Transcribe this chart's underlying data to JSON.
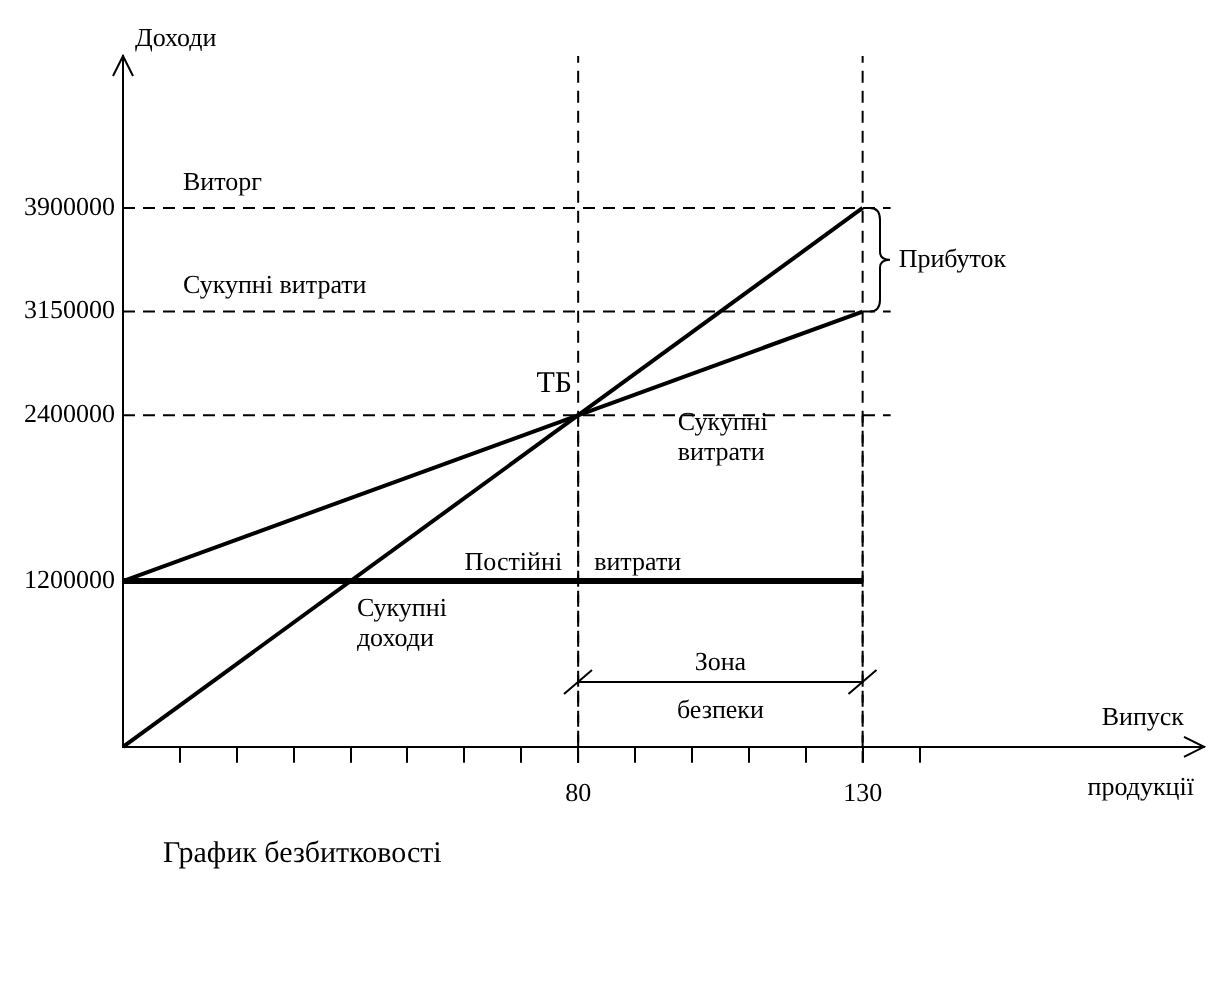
{
  "chart_data": {
    "type": "line",
    "title": "График безбитковості",
    "xlabel": "Випуск продукції",
    "ylabel": "Доходи",
    "x": [
      0,
      130
    ],
    "xlim": [
      0,
      190
    ],
    "ylim": [
      0,
      5000000
    ],
    "xticks": [
      {
        "value": 10,
        "label": null
      },
      {
        "value": 20,
        "label": null
      },
      {
        "value": 30,
        "label": null
      },
      {
        "value": 40,
        "label": null
      },
      {
        "value": 50,
        "label": null
      },
      {
        "value": 60,
        "label": null
      },
      {
        "value": 70,
        "label": null
      },
      80,
      {
        "value": 90,
        "label": null
      },
      {
        "value": 100,
        "label": null
      },
      {
        "value": 110,
        "label": null
      },
      {
        "value": 120,
        "label": null
      },
      130,
      {
        "value": 140,
        "label": null
      }
    ],
    "yticks": [
      1200000,
      2400000,
      3150000,
      3900000
    ],
    "grid": false,
    "legend": false,
    "marker": "none",
    "series": [
      {
        "name": "Сукупні доходи",
        "color": "#000000",
        "values": [
          0,
          3900000
        ]
      },
      {
        "name": "Сукупні витрати",
        "color": "#000000",
        "values": [
          1200000,
          3150000
        ]
      },
      {
        "name": "Постійні витрати",
        "color": "#000000",
        "values": [
          1200000,
          1200000
        ]
      }
    ],
    "ref_lines": [
      {
        "axis": "y",
        "value": 3900000,
        "label": "Виторг",
        "line_style": "dashed"
      },
      {
        "axis": "y",
        "value": 3150000,
        "label": "Сукупні витрати",
        "line_style": "dashed"
      },
      {
        "axis": "y",
        "value": 2400000,
        "line_style": "dashed"
      },
      {
        "axis": "x",
        "value": 80,
        "line_style": "dashed"
      },
      {
        "axis": "x",
        "value": 130,
        "line_style": "dashed"
      }
    ],
    "annotations": [
      {
        "text": "ТБ",
        "x": 80,
        "y": 2400000
      },
      {
        "text": "Прибуток",
        "x": 130,
        "y": 3525000
      },
      "Зона безпеки"
    ]
  }
}
